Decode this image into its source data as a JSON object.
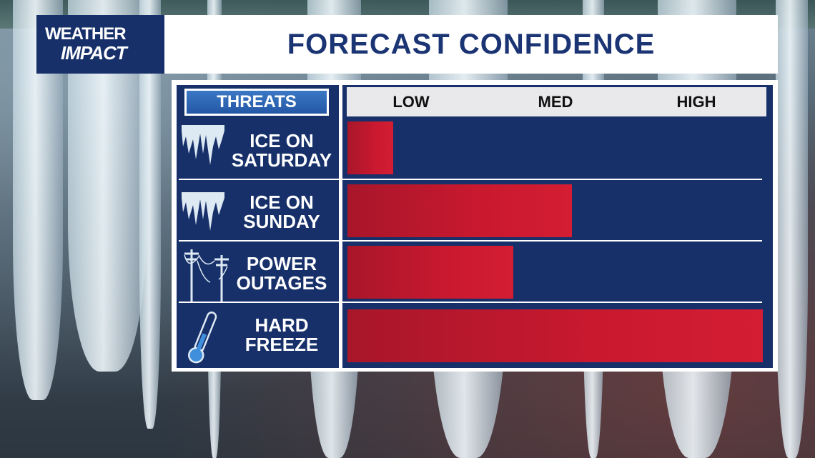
{
  "header": {
    "logo_line1": "WEATHER",
    "logo_line2": "IMPACT",
    "title": "FORECAST CONFIDENCE"
  },
  "table": {
    "threats_label": "THREATS",
    "scale_labels": [
      "LOW",
      "MED",
      "HIGH"
    ]
  },
  "chart_data": {
    "type": "bar",
    "orientation": "horizontal",
    "categories": [
      "ICE ON SATURDAY",
      "ICE ON SUNDAY",
      "POWER OUTAGES",
      "HARD FREEZE"
    ],
    "values": [
      0.11,
      0.54,
      0.4,
      1.0
    ],
    "scale": [
      "LOW",
      "MED",
      "HIGH"
    ],
    "xlim": [
      0,
      1
    ],
    "bar_color": "#c41a2f"
  },
  "rows": [
    {
      "label": "ICE ON\nSATURDAY",
      "icon": "icicles-icon"
    },
    {
      "label": "ICE ON\nSUNDAY",
      "icon": "icicles-icon"
    },
    {
      "label": "POWER\nOUTAGES",
      "icon": "power-lines-icon"
    },
    {
      "label": "HARD\nFREEZE",
      "icon": "thermometer-icon"
    }
  ],
  "colors": {
    "navy": "#17306a",
    "title_text": "#1b3473",
    "header_blue": "#2f6bbb",
    "bar_red": "#c41a2f"
  }
}
